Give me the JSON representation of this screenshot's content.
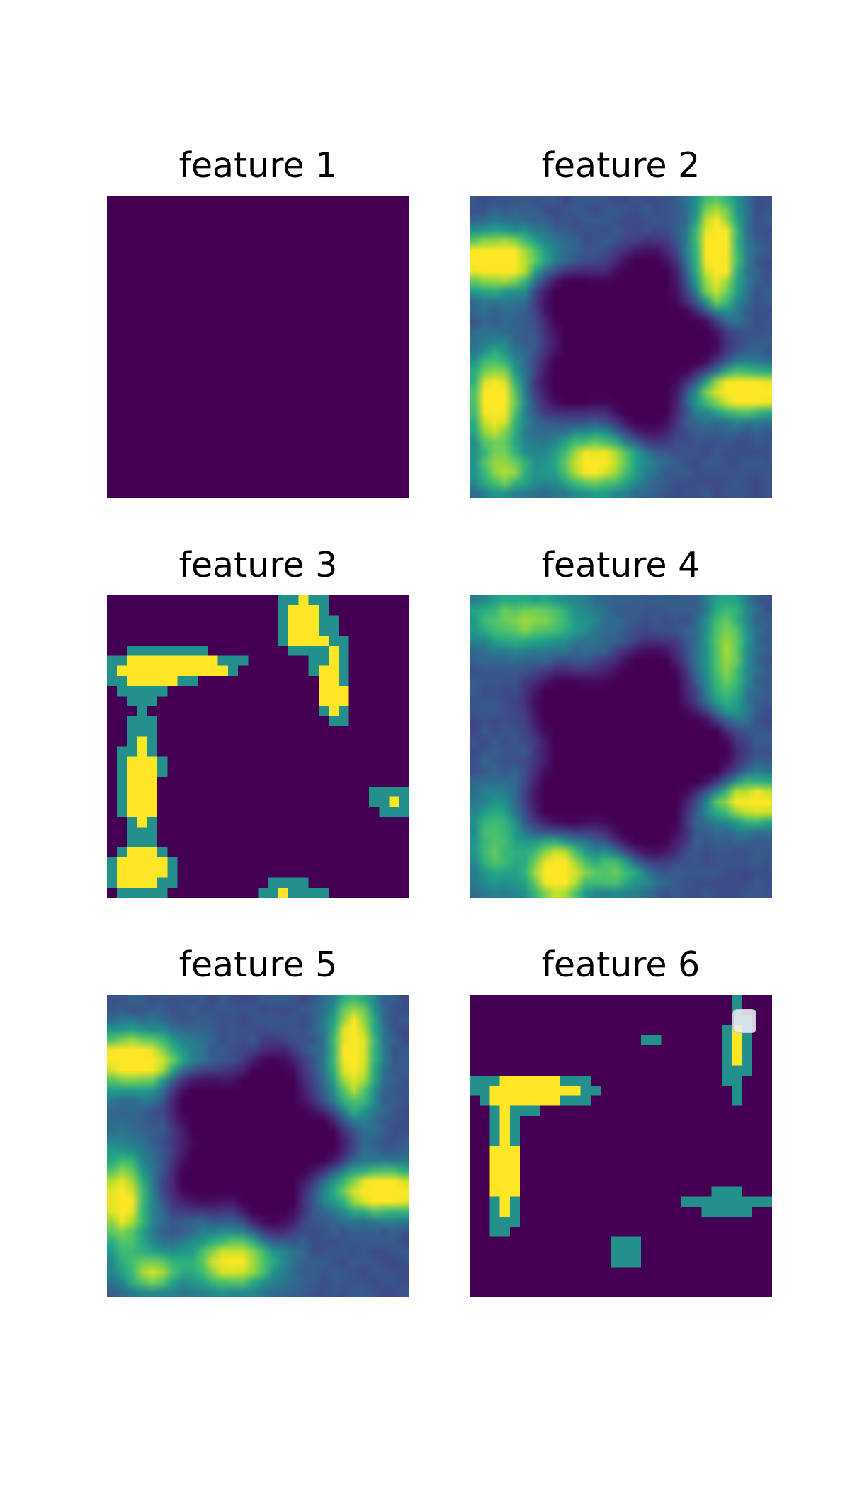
{
  "figure": {
    "background": "#ffffff",
    "colormap": "viridis",
    "colors": {
      "low": "#440154",
      "mid": "#21918c",
      "high": "#fde725"
    }
  },
  "chart_data": [
    {
      "type": "heatmap",
      "title": "feature 1",
      "grid": false,
      "axes_visible": false,
      "rows": 30,
      "cols": 30,
      "pattern": "flat",
      "value_range": [
        0,
        0
      ],
      "note_values": "uniform zero map"
    },
    {
      "type": "heatmap",
      "title": "feature 2",
      "grid": false,
      "axes_visible": false,
      "rows": 30,
      "cols": 30,
      "pattern": "smooth",
      "value_range": [
        0,
        1
      ],
      "hotspots": [
        {
          "row": 6,
          "col": 2,
          "value": 1.0,
          "sr": 2.0,
          "sc": 3.5
        },
        {
          "row": 5,
          "col": 24,
          "value": 0.95,
          "sr": 4.5,
          "sc": 1.6
        },
        {
          "row": 19,
          "col": 27,
          "value": 1.0,
          "sr": 1.6,
          "sc": 3.5
        },
        {
          "row": 20,
          "col": 2,
          "value": 0.9,
          "sr": 3.5,
          "sc": 1.8
        },
        {
          "row": 26,
          "col": 12,
          "value": 0.85,
          "sr": 2.0,
          "sc": 3.0
        },
        {
          "row": 27,
          "col": 3,
          "value": 0.55,
          "sr": 1.5,
          "sc": 2.0
        }
      ],
      "hole": {
        "row": 14,
        "col": 15,
        "radius": 7.5,
        "lobes": 5
      }
    },
    {
      "type": "heatmap",
      "title": "feature 3",
      "grid": false,
      "axes_visible": false,
      "rows": 30,
      "cols": 30,
      "pattern": "quantized",
      "value_range": [
        0,
        2
      ],
      "hotspots": [
        {
          "row": 7,
          "col": 6,
          "value": 1.0,
          "sr": 1.5,
          "sc": 5.5
        },
        {
          "row": 2,
          "col": 19,
          "value": 1.0,
          "sr": 2.5,
          "sc": 1.5
        },
        {
          "row": 10,
          "col": 22,
          "value": 0.9,
          "sr": 5.0,
          "sc": 1.2
        },
        {
          "row": 18,
          "col": 3,
          "value": 0.9,
          "sr": 5.0,
          "sc": 1.5
        },
        {
          "row": 27,
          "col": 3,
          "value": 1.0,
          "sr": 1.5,
          "sc": 2.5
        },
        {
          "row": 20,
          "col": 28,
          "value": 0.6,
          "sr": 1.2,
          "sc": 2.5
        },
        {
          "row": 29,
          "col": 18,
          "value": 0.6,
          "sr": 1.0,
          "sc": 3.0
        }
      ],
      "hole": {
        "row": 15,
        "col": 14,
        "radius": 7.0,
        "lobes": 5
      }
    },
    {
      "type": "heatmap",
      "title": "feature 4",
      "grid": false,
      "axes_visible": false,
      "rows": 30,
      "cols": 30,
      "pattern": "smooth",
      "value_range": [
        0,
        1
      ],
      "hotspots": [
        {
          "row": 2,
          "col": 5,
          "value": 0.6,
          "sr": 2.0,
          "sc": 4.5
        },
        {
          "row": 5,
          "col": 25,
          "value": 0.6,
          "sr": 5.0,
          "sc": 1.6
        },
        {
          "row": 20,
          "col": 28,
          "value": 0.85,
          "sr": 1.6,
          "sc": 3.5
        },
        {
          "row": 27,
          "col": 8,
          "value": 0.9,
          "sr": 2.5,
          "sc": 2.0
        },
        {
          "row": 24,
          "col": 2,
          "value": 0.5,
          "sr": 3.5,
          "sc": 1.8
        },
        {
          "row": 27,
          "col": 14,
          "value": 0.5,
          "sr": 1.6,
          "sc": 2.5
        }
      ],
      "hole": {
        "row": 15,
        "col": 15,
        "radius": 8.5,
        "lobes": 5
      }
    },
    {
      "type": "heatmap",
      "title": "feature 5",
      "grid": false,
      "axes_visible": false,
      "rows": 30,
      "cols": 30,
      "pattern": "smooth",
      "value_range": [
        0,
        1
      ],
      "hotspots": [
        {
          "row": 6,
          "col": 2,
          "value": 0.95,
          "sr": 2.0,
          "sc": 3.5
        },
        {
          "row": 5,
          "col": 24,
          "value": 0.9,
          "sr": 4.5,
          "sc": 1.6
        },
        {
          "row": 19,
          "col": 27,
          "value": 1.0,
          "sr": 1.6,
          "sc": 3.5
        },
        {
          "row": 20,
          "col": 1,
          "value": 0.85,
          "sr": 3.5,
          "sc": 1.8
        },
        {
          "row": 26,
          "col": 12,
          "value": 0.8,
          "sr": 2.0,
          "sc": 3.0
        },
        {
          "row": 27,
          "col": 4,
          "value": 0.6,
          "sr": 1.5,
          "sc": 2.0
        }
      ],
      "hole": {
        "row": 14,
        "col": 14,
        "radius": 7.0,
        "lobes": 5
      }
    },
    {
      "type": "heatmap",
      "title": "feature 6",
      "grid": false,
      "axes_visible": false,
      "rows": 30,
      "cols": 30,
      "pattern": "quantized",
      "value_range": [
        0,
        2
      ],
      "hotspots": [
        {
          "row": 9,
          "col": 6,
          "value": 1.0,
          "sr": 1.2,
          "sc": 4.5
        },
        {
          "row": 17,
          "col": 3,
          "value": 1.0,
          "sr": 4.5,
          "sc": 1.2
        },
        {
          "row": 5,
          "col": 26,
          "value": 0.7,
          "sr": 4.0,
          "sc": 1.0
        },
        {
          "row": 20,
          "col": 25,
          "value": 0.6,
          "sr": 1.0,
          "sc": 4.0
        },
        {
          "row": 25,
          "col": 15,
          "value": 0.6,
          "sr": 1.5,
          "sc": 1.5
        },
        {
          "row": 4,
          "col": 18,
          "value": 0.55,
          "sr": 0.8,
          "sc": 1.0
        }
      ],
      "hole": {
        "row": 18,
        "col": 14,
        "radius": 0,
        "lobes": 0
      }
    }
  ]
}
